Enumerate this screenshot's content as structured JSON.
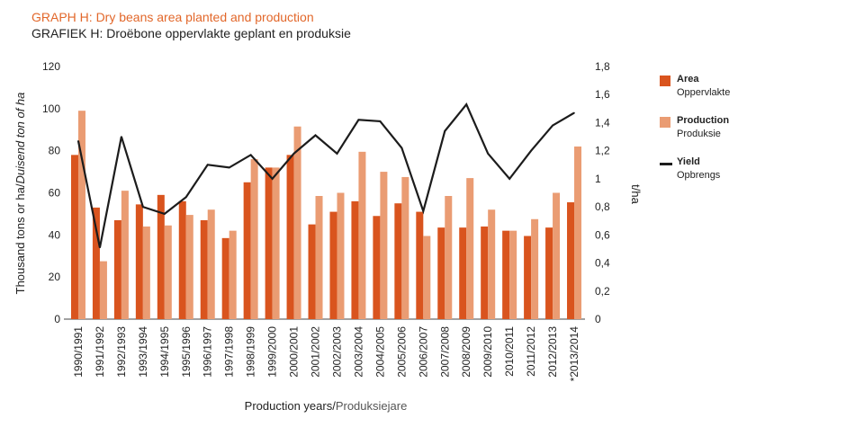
{
  "title": "GRAPH H: Dry beans area planted and production",
  "subtitle": "GRAFIEK H: Droëbone oppervlakte geplant en produksie",
  "legend": {
    "area_en": "Area",
    "area_af": "Oppervlakte",
    "production_en": "Production",
    "production_af": "Produksie",
    "yield_en": "Yield",
    "yield_af": "Opbrengs"
  },
  "chart_data": {
    "type": "bar",
    "categories": [
      "1990/1991",
      "1991/1992",
      "1992/1993",
      "1993/1994",
      "1994/1995",
      "1995/1996",
      "1996/1997",
      "1997/1998",
      "1998/1999",
      "1999/2000",
      "2000/2001",
      "2001/2002",
      "2002/2003",
      "2003/2004",
      "2004/2005",
      "2005/2006",
      "2006/2007",
      "2007/2008",
      "2008/2009",
      "2009/2010",
      "2010/2011",
      "2011/2012",
      "2012/2013",
      "*2013/2014"
    ],
    "series": [
      {
        "name": "Area",
        "axis": "left",
        "kind": "bar",
        "color": "#d9541e",
        "values": [
          78,
          53,
          47,
          54.5,
          59,
          56,
          47,
          38.5,
          65,
          72,
          78,
          45,
          51,
          56,
          49,
          55,
          51,
          43.5,
          43.5,
          44,
          42,
          39.5,
          43.5,
          55.5
        ]
      },
      {
        "name": "Production",
        "axis": "left",
        "kind": "bar",
        "color": "#ea9c73",
        "values": [
          99,
          27.5,
          61,
          44,
          44.5,
          49.5,
          52,
          42,
          76,
          72,
          91.5,
          58.5,
          60,
          79.5,
          70,
          67.5,
          39.5,
          58.5,
          67,
          52,
          42,
          47.5,
          60,
          82
        ]
      },
      {
        "name": "Yield",
        "axis": "right",
        "kind": "line",
        "color": "#1c1c1c",
        "values": [
          1.27,
          0.51,
          1.3,
          0.8,
          0.75,
          0.87,
          1.1,
          1.08,
          1.17,
          1.0,
          1.18,
          1.31,
          1.18,
          1.42,
          1.41,
          1.22,
          0.77,
          1.34,
          1.53,
          1.18,
          1.0,
          1.2,
          1.38,
          1.47
        ]
      }
    ],
    "ylabel_left": "Thousand tons or ha/",
    "ylabel_left_af": "Duisend ton of ha",
    "ylabel_right": "t/ha",
    "xlabel": "Production years/",
    "xlabel_af": "Produksiejare",
    "ylim_left": [
      0,
      120
    ],
    "yticks_left": [
      "0",
      "20",
      "40",
      "60",
      "80",
      "100",
      "120"
    ],
    "ylim_right": [
      0,
      1.8
    ],
    "yticks_right": [
      "0",
      "0,2",
      "0,4",
      "0,6",
      "0,8",
      "1",
      "1,2",
      "1,4",
      "1,6",
      "1,8"
    ],
    "grid": false,
    "legend_position": "right"
  }
}
